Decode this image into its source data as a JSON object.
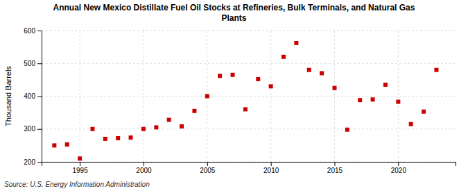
{
  "chart_data": {
    "type": "scatter",
    "title": "Annual New Mexico Distillate Fuel Oil Stocks at Refineries, Bulk Terminals, and Natural Gas\nPlants",
    "ylabel": "Thousand Barrels",
    "source": "Source: U.S. Energy Information Administration",
    "x": [
      1993,
      1994,
      1995,
      1996,
      1997,
      1998,
      1999,
      2000,
      2001,
      2002,
      2003,
      2004,
      2005,
      2006,
      2007,
      2008,
      2009,
      2010,
      2011,
      2012,
      2013,
      2014,
      2015,
      2016,
      2017,
      2018,
      2019,
      2020,
      2021,
      2022,
      2023
    ],
    "values": [
      250,
      253,
      210,
      300,
      270,
      272,
      274,
      300,
      305,
      328,
      308,
      355,
      400,
      462,
      465,
      360,
      452,
      430,
      520,
      562,
      480,
      470,
      425,
      298,
      388,
      390,
      435,
      383,
      315,
      353,
      480
    ],
    "color": "#cc0000",
    "marker": "square",
    "xlim": [
      1992,
      2024.5
    ],
    "xticks": [
      1995,
      2000,
      2005,
      2010,
      2015,
      2020
    ],
    "ylim": [
      200,
      600
    ],
    "yticks": [
      200,
      300,
      400,
      500,
      600
    ],
    "grid": true
  }
}
